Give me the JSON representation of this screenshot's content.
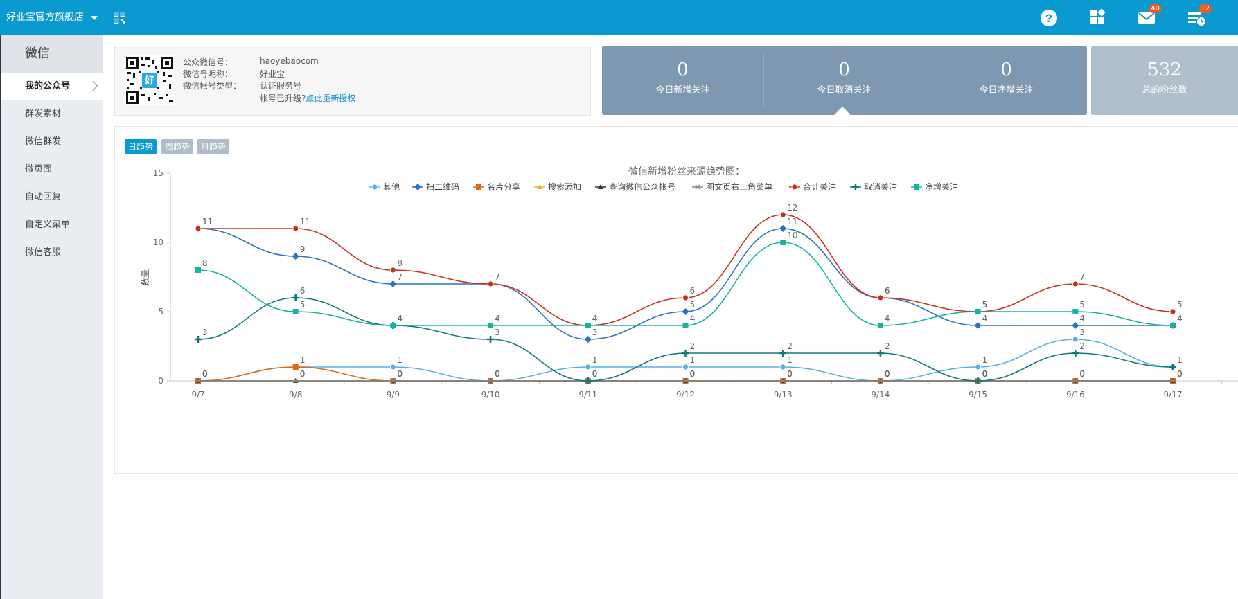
{
  "header": {
    "store_name": "好业宝官方旗舰店",
    "help_badge": "",
    "mail_badge": "40",
    "tasks_badge": "12"
  },
  "sidebar": {
    "title": "微信",
    "items": [
      {
        "label": "我的公众号"
      },
      {
        "label": "群发素材"
      },
      {
        "label": "微信群发"
      },
      {
        "label": "微页面"
      },
      {
        "label": "自动回复"
      },
      {
        "label": "自定义菜单"
      },
      {
        "label": "微信客服"
      }
    ]
  },
  "account": {
    "k1": "公众微信号：",
    "v1": "haoyebaocom",
    "k2": "微信号昵称：",
    "v2": "好业宝",
    "k3": "微信帐号类型：",
    "v3": "认证服务号",
    "upgrade_text": "帐号已升级?",
    "reauth_link": "点此重新授权",
    "qr_badge": "好"
  },
  "stats": [
    {
      "num": "0",
      "label": "今日新增关注"
    },
    {
      "num": "0",
      "label": "今日取消关注"
    },
    {
      "num": "0",
      "label": "今日净增关注"
    }
  ],
  "total": {
    "num": "532",
    "label": "总的粉丝数"
  },
  "trend_tabs": [
    "日趋势",
    "周趋势",
    "月趋势"
  ],
  "colors": {
    "accent": "#0a9acf",
    "stat_bg": "#7f98b1",
    "total_bg": "#b1bfcd"
  },
  "chart_data": {
    "type": "line",
    "title": "微信新增粉丝来源趋势图：",
    "ylabel": "数量",
    "ylim": [
      0,
      15
    ],
    "yticks": [
      0,
      5,
      10,
      15
    ],
    "categories": [
      "9/7",
      "9/8",
      "9/9",
      "9/10",
      "9/11",
      "9/12",
      "9/13",
      "9/14",
      "9/15",
      "9/16",
      "9/17"
    ],
    "series": [
      {
        "name": "其他",
        "color": "#5aaee6",
        "marker": "circle",
        "values": [
          0,
          1,
          1,
          0,
          1,
          1,
          1,
          0,
          1,
          3,
          1
        ]
      },
      {
        "name": "扫二维码",
        "color": "#2a72c8",
        "marker": "diamond",
        "values": [
          11,
          9,
          7,
          7,
          3,
          5,
          11,
          6,
          4,
          4,
          4
        ]
      },
      {
        "name": "名片分享",
        "color": "#e2680e",
        "marker": "square",
        "values": [
          0,
          1,
          0,
          0,
          0,
          0,
          0,
          0,
          0,
          0,
          0
        ]
      },
      {
        "name": "搜索添加",
        "color": "#e8b43a",
        "marker": "triangle",
        "values": [
          0,
          0,
          0,
          0,
          0,
          0,
          0,
          0,
          0,
          0,
          0
        ]
      },
      {
        "name": "查询微信公众帐号",
        "color": "#333333",
        "marker": "triangle",
        "values": [
          0,
          0,
          0,
          0,
          0,
          0,
          0,
          0,
          0,
          0,
          0
        ]
      },
      {
        "name": "图文页右上角菜单",
        "color": "#888888",
        "marker": "x",
        "values": [
          0,
          0,
          0,
          0,
          0,
          0,
          0,
          0,
          0,
          0,
          0
        ]
      },
      {
        "name": "合计关注",
        "color": "#c9301c",
        "marker": "circle",
        "values": [
          11,
          11,
          8,
          7,
          4,
          6,
          12,
          6,
          5,
          7,
          5
        ]
      },
      {
        "name": "取消关注",
        "color": "#11787a",
        "marker": "cross",
        "values": [
          3,
          6,
          4,
          3,
          0,
          2,
          2,
          2,
          0,
          2,
          1
        ]
      },
      {
        "name": "净增关注",
        "color": "#16b3a0",
        "marker": "square",
        "values": [
          8,
          5,
          4,
          4,
          4,
          4,
          10,
          4,
          5,
          5,
          4
        ]
      }
    ]
  }
}
